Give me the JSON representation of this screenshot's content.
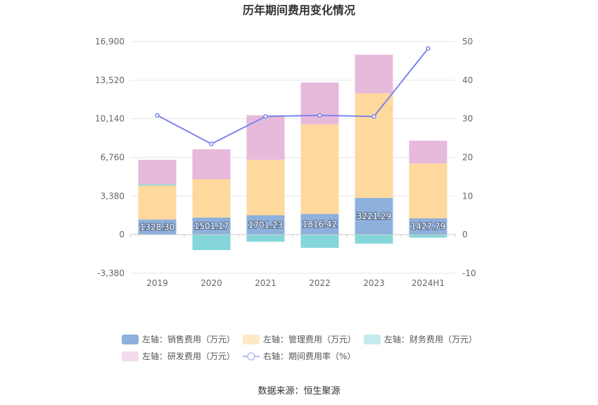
{
  "chart_data": {
    "type": "bar",
    "title": "历年期间费用变化情况",
    "categories": [
      "2019",
      "2020",
      "2021",
      "2022",
      "2023",
      "2024H1"
    ],
    "stacked": true,
    "left_axis": {
      "ylim": [
        -3380,
        16900
      ],
      "ticks": [
        "16,900",
        "13,520",
        "10,140",
        "6,760",
        "3,380",
        "0",
        "-3,380"
      ],
      "tick_values": [
        16900,
        13520,
        10140,
        6760,
        3380,
        0,
        -3380
      ]
    },
    "right_axis": {
      "ylim": [
        -10,
        50
      ],
      "ticks": [
        "50",
        "40",
        "30",
        "20",
        "10",
        "0",
        "-10"
      ],
      "tick_values": [
        50,
        40,
        30,
        20,
        10,
        0,
        -10
      ]
    },
    "series": [
      {
        "name": "左轴：销售费用（万元）",
        "type": "bar",
        "axis": "left",
        "color": "#8eb0dc",
        "values": [
          1328.3,
          1501.17,
          1701.23,
          1816.42,
          3221.29,
          1427.79
        ],
        "labels": [
          "1328.30",
          "1501.17",
          "1701.23",
          "1816.42",
          "3221.29",
          "1427.79"
        ]
      },
      {
        "name": "左轴：管理费用（万元）",
        "type": "bar",
        "axis": "left",
        "color": "#fed89c",
        "values": [
          2970,
          3350,
          4850,
          7850,
          9150,
          4800
        ]
      },
      {
        "name": "左轴：财务费用（万元）",
        "type": "bar",
        "axis": "left",
        "color": "#85d6d9",
        "values": [
          100,
          -1350,
          -620,
          -1150,
          -780,
          -260
        ]
      },
      {
        "name": "左轴：研发费用（万元）",
        "type": "bar",
        "axis": "left",
        "color": "#e7b9da",
        "values": [
          2150,
          2620,
          3900,
          3650,
          3380,
          2000
        ]
      },
      {
        "name": "右轴：期间费用率（%）",
        "type": "line",
        "axis": "right",
        "color": "#7b86ea",
        "values": [
          30.9,
          23.5,
          30.6,
          30.9,
          30.6,
          48.2
        ]
      }
    ],
    "legend_position": "bottom",
    "grid": true
  },
  "source_text": "数据来源：恒生聚源"
}
